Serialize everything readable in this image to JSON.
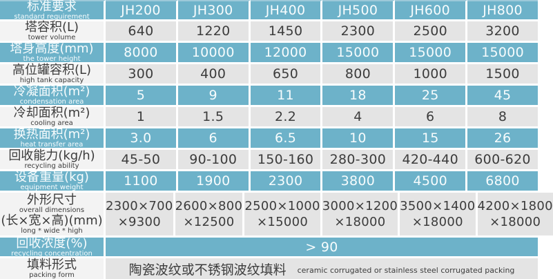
{
  "colors": {
    "row_blue": "#6db2c9",
    "label_light": "#f3f3f3",
    "data_light": "#e4e4e4",
    "text_on_blue": "#f7fcfd",
    "text_dark": "#3c3c3c",
    "separator": "#ffffff"
  },
  "table": {
    "header": {
      "zh": "标准要求",
      "en": "standard requirement",
      "columns": [
        "JH200",
        "JH300",
        "JH400",
        "JH500",
        "JH600",
        "JH800"
      ]
    },
    "rows": [
      {
        "zh": "塔容积(L)",
        "en": "tower volume",
        "values": [
          "640",
          "1220",
          "1450",
          "2300",
          "2500",
          "3200"
        ]
      },
      {
        "zh": "塔身高度(mm)",
        "en": "the tower height",
        "values": [
          "8000",
          "10000",
          "12000",
          "15000",
          "15000",
          "15000"
        ]
      },
      {
        "zh": "高位罐容积(L)",
        "en": "high tank capacity",
        "values": [
          "300",
          "400",
          "650",
          "800",
          "1000",
          "1500"
        ]
      },
      {
        "zh": "冷凝面积(m²)",
        "en": "condensation area",
        "values": [
          "5",
          "9",
          "11",
          "18",
          "25",
          "45"
        ]
      },
      {
        "zh": "冷却面积(m²)",
        "en": "cooling area",
        "values": [
          "1",
          "1.5",
          "2.2",
          "4",
          "6",
          "8"
        ]
      },
      {
        "zh": "换热面积(m²)",
        "en": "heat transfer area",
        "values": [
          "3.0",
          "6",
          "6.5",
          "10",
          "15",
          "26"
        ]
      },
      {
        "zh": "回收能力(kg/h)",
        "en": "recycling ability",
        "values": [
          "45-50",
          "90-100",
          "150-160",
          "280-300",
          "420-440",
          "600-620"
        ]
      },
      {
        "zh": "设备重量(kg)",
        "en": "equipment weight",
        "values": [
          "1100",
          "1900",
          "2300",
          "3800",
          "4500",
          "6800"
        ]
      },
      {
        "zh": "外形尺寸",
        "en": "overall dimensions",
        "zh2": "(长×宽×高)(mm)",
        "en2": "long * wide * high",
        "line1": [
          "2300×700",
          "2600×800",
          "2500×1000",
          "3000×1200",
          "3500×1400",
          "4200×1800"
        ],
        "line2": [
          "×9300",
          "×12500",
          "×15000",
          "×18000",
          "×18000",
          "×18000"
        ]
      },
      {
        "zh": "回收浓度(%)",
        "en": "recycling concentration",
        "value": "> 90"
      },
      {
        "zh": "填料形式",
        "en": "packing form",
        "value_zh": "陶瓷波纹或不锈钢波纹填料",
        "value_en": "ceramic corrugated or stainless steel corrugated packing"
      }
    ]
  }
}
